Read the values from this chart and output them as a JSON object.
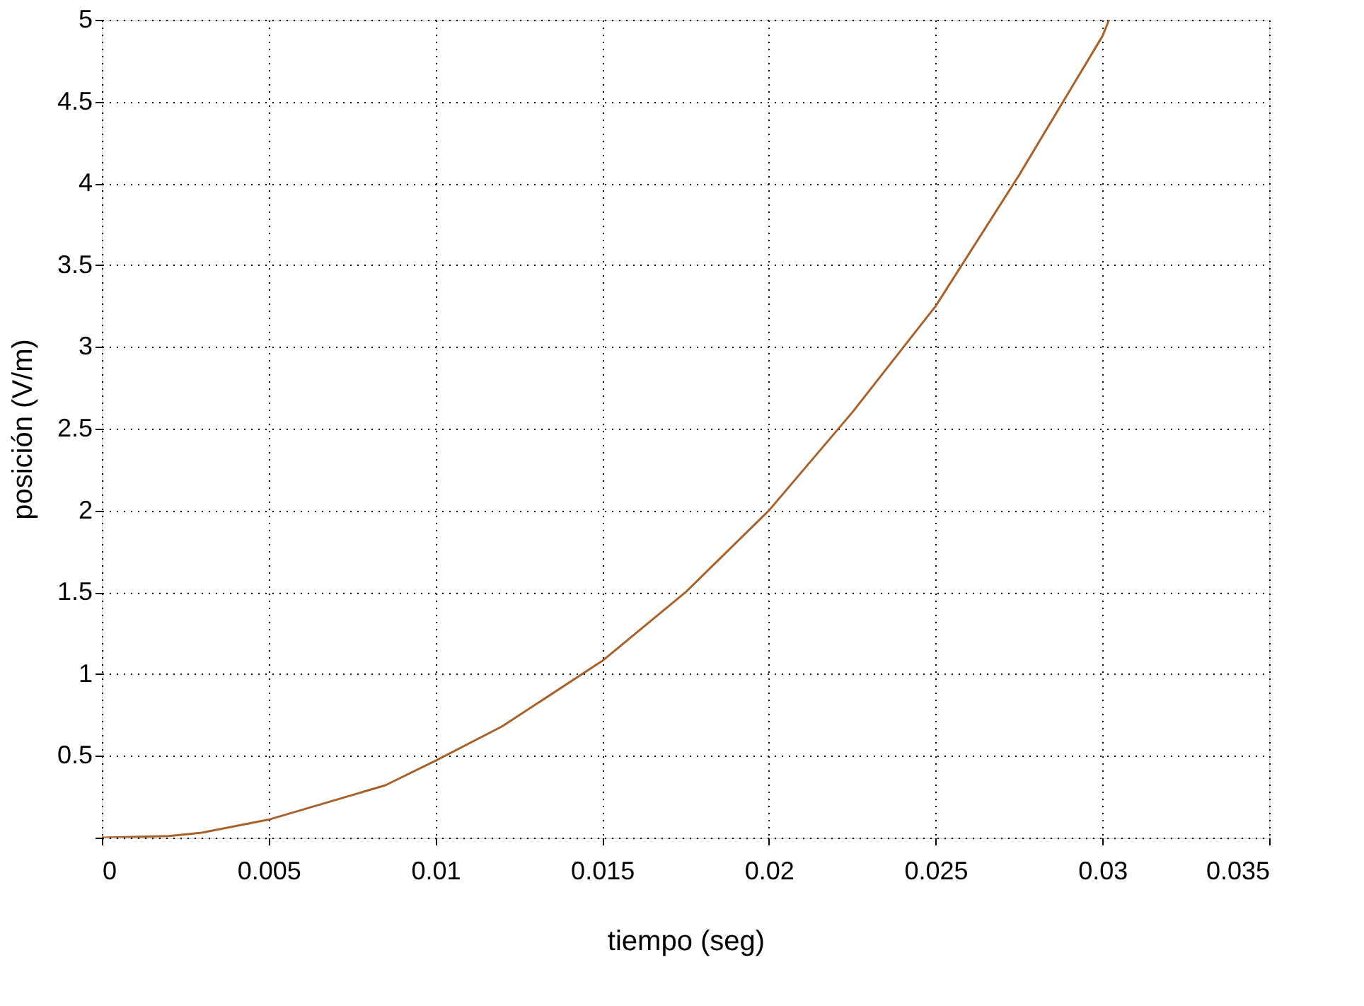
{
  "chart_data": {
    "type": "line",
    "xlabel": "tiempo (seg)",
    "ylabel": "posición (V/m)",
    "x": [
      0,
      0.002,
      0.003,
      0.005,
      0.0085,
      0.01,
      0.012,
      0.015,
      0.0175,
      0.02,
      0.0225,
      0.025,
      0.0275,
      0.03,
      0.0302
    ],
    "series": [
      {
        "color": "#a8612a",
        "values": [
          0,
          0.01,
          0.03,
          0.11,
          0.32,
          0.47,
          0.68,
          1.08,
          1.5,
          2.0,
          2.6,
          3.25,
          4.05,
          4.9,
          5.0
        ]
      }
    ],
    "xlim": [
      0,
      0.035
    ],
    "ylim": [
      0,
      5
    ],
    "xticks": [
      0,
      0.005,
      0.01,
      0.015,
      0.02,
      0.025,
      0.03,
      0.035
    ],
    "yticks": [
      {
        "value": 0,
        "label": null
      },
      0.5,
      1,
      1.5,
      2,
      2.5,
      3,
      3.5,
      4,
      4.5,
      5
    ],
    "grid": true,
    "line_style": "solid",
    "marker": "none"
  }
}
